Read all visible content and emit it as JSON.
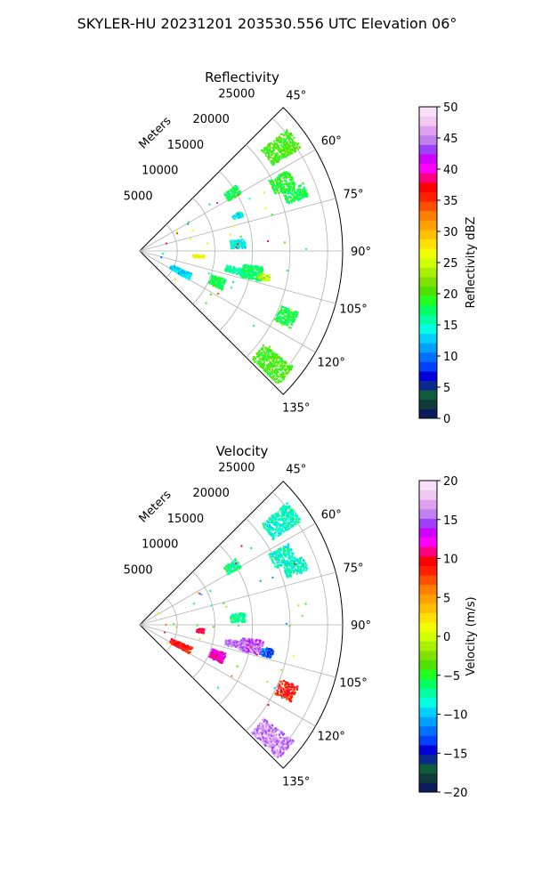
{
  "figure": {
    "title": "SKYLER-HU  20231201  203530.556 UTC Elevation 06°"
  },
  "chart_data": [
    {
      "type": "polar-sector",
      "title": "Reflectivity",
      "radial_label": "Meters",
      "r_ticks": [
        5000,
        10000,
        15000,
        20000,
        25000
      ],
      "r_tick_labels": [
        "5000",
        "10000",
        "15000",
        "20000",
        "25000"
      ],
      "r_lim": [
        0,
        27000
      ],
      "theta_range_deg": [
        45,
        135
      ],
      "theta_ticks": [
        "45°",
        "60°",
        "75°",
        "90°",
        "105°",
        "120°",
        "135°"
      ],
      "grid": true,
      "colorbar": {
        "label": "Reflectivity dBZ",
        "range": [
          0,
          50
        ],
        "ticks": [
          "0",
          "5",
          "10",
          "15",
          "20",
          "25",
          "30",
          "35",
          "40",
          "45",
          "50"
        ],
        "colors": [
          "#0b1b5c",
          "#0e3a3a",
          "#0f5a3a",
          "#0a2a8c",
          "#0000d8",
          "#0040ff",
          "#0070ff",
          "#00a0ff",
          "#00d0ff",
          "#00ffe0",
          "#00ffa0",
          "#00ff60",
          "#20ff20",
          "#50e000",
          "#80e000",
          "#a8f000",
          "#d0ff00",
          "#f0ff00",
          "#ffe000",
          "#ffc000",
          "#ffa000",
          "#ff8000",
          "#ff5000",
          "#ff2000",
          "#ff0000",
          "#ff0080",
          "#ff00ff",
          "#d000ff",
          "#a040ff",
          "#c080f0",
          "#e0a0f0",
          "#f0c8f0",
          "#f8e0f8"
        ]
      },
      "echoes": [
        {
          "azimuth_deg": [
            50,
            57
          ],
          "range_m": [
            21000,
            25500
          ],
          "value": 20
        },
        {
          "azimuth_deg": [
            61,
            67
          ],
          "range_m": [
            19500,
            22500
          ],
          "value": 19
        },
        {
          "azimuth_deg": [
            67,
            72
          ],
          "range_m": [
            20500,
            23500
          ],
          "value": 18
        },
        {
          "azimuth_deg": [
            55,
            60
          ],
          "range_m": [
            13500,
            15500
          ],
          "value": 18
        },
        {
          "azimuth_deg": [
            68,
            71
          ],
          "range_m": [
            13000,
            14500
          ],
          "value": 14
        },
        {
          "azimuth_deg": [
            97,
            104
          ],
          "range_m": [
            13500,
            16500
          ],
          "value": 17
        },
        {
          "azimuth_deg": [
            100,
            103
          ],
          "range_m": [
            16000,
            17500
          ],
          "value": 24
        },
        {
          "azimuth_deg": [
            99,
            103
          ],
          "range_m": [
            11500,
            13500
          ],
          "value": 16
        },
        {
          "azimuth_deg": [
            93,
            96
          ],
          "range_m": [
            7000,
            8500
          ],
          "value": 27
        },
        {
          "azimuth_deg": [
            108,
            115
          ],
          "range_m": [
            10000,
            12000
          ],
          "value": 18
        },
        {
          "azimuth_deg": [
            111,
            117
          ],
          "range_m": [
            20000,
            22500
          ],
          "value": 18
        },
        {
          "azimuth_deg": [
            127,
            134
          ],
          "range_m": [
            20500,
            25500
          ],
          "value": 20
        },
        {
          "azimuth_deg": [
            113,
            120
          ],
          "range_m": [
            4500,
            7500
          ],
          "value": 13
        },
        {
          "azimuth_deg": [
            83,
            88
          ],
          "range_m": [
            12000,
            14000
          ],
          "value": 14
        }
      ]
    },
    {
      "type": "polar-sector",
      "title": "Velocity",
      "radial_label": "Meters",
      "r_ticks": [
        5000,
        10000,
        15000,
        20000,
        25000
      ],
      "r_tick_labels": [
        "5000",
        "10000",
        "15000",
        "20000",
        "25000"
      ],
      "r_lim": [
        0,
        27000
      ],
      "theta_range_deg": [
        45,
        135
      ],
      "theta_ticks": [
        "45°",
        "60°",
        "75°",
        "90°",
        "105°",
        "120°",
        "135°"
      ],
      "grid": true,
      "colorbar": {
        "label": "Velocity (m/s)",
        "range": [
          -20,
          20
        ],
        "ticks": [
          "−20",
          "−15",
          "−10",
          "−5",
          "0",
          "5",
          "10",
          "15",
          "20"
        ],
        "colors": [
          "#0b1b5c",
          "#0e3a3a",
          "#0f5a3a",
          "#0a2a8c",
          "#0000d8",
          "#0040ff",
          "#0070ff",
          "#00a0ff",
          "#00d0ff",
          "#00ffe0",
          "#00ffa0",
          "#00ff60",
          "#20ff20",
          "#50e000",
          "#80e000",
          "#a8f000",
          "#d0ff00",
          "#f0ff00",
          "#ffe000",
          "#ffc000",
          "#ffa000",
          "#ff8000",
          "#ff5000",
          "#ff2000",
          "#ff0000",
          "#ff0080",
          "#ff00ff",
          "#d000ff",
          "#a040ff",
          "#c080f0",
          "#e0a0f0",
          "#f0c8f0",
          "#f8e0f8"
        ]
      },
      "echoes": [
        {
          "azimuth_deg": [
            50,
            57
          ],
          "range_m": [
            21000,
            25500
          ],
          "value": -8
        },
        {
          "azimuth_deg": [
            61,
            67
          ],
          "range_m": [
            19500,
            22500
          ],
          "value": -8
        },
        {
          "azimuth_deg": [
            67,
            72
          ],
          "range_m": [
            20500,
            23500
          ],
          "value": -8
        },
        {
          "azimuth_deg": [
            55,
            60
          ],
          "range_m": [
            13500,
            15500
          ],
          "value": -7
        },
        {
          "azimuth_deg": [
            97,
            104
          ],
          "range_m": [
            13500,
            16500
          ],
          "value": 15
        },
        {
          "azimuth_deg": [
            100,
            104
          ],
          "range_m": [
            16500,
            18000
          ],
          "value": -13
        },
        {
          "azimuth_deg": [
            99,
            103
          ],
          "range_m": [
            11500,
            13500
          ],
          "value": 16
        },
        {
          "azimuth_deg": [
            93,
            97
          ],
          "range_m": [
            7500,
            8500
          ],
          "value": 10
        },
        {
          "azimuth_deg": [
            108,
            115
          ],
          "range_m": [
            10000,
            12000
          ],
          "value": 12
        },
        {
          "azimuth_deg": [
            111,
            117
          ],
          "range_m": [
            20000,
            22500
          ],
          "value": 9
        },
        {
          "azimuth_deg": [
            127,
            134
          ],
          "range_m": [
            20500,
            25500
          ],
          "value": 16
        },
        {
          "azimuth_deg": [
            113,
            120
          ],
          "range_m": [
            4500,
            7500
          ],
          "value": 9
        },
        {
          "azimuth_deg": [
            83,
            88
          ],
          "range_m": [
            12000,
            14000
          ],
          "value": -7
        }
      ]
    }
  ]
}
